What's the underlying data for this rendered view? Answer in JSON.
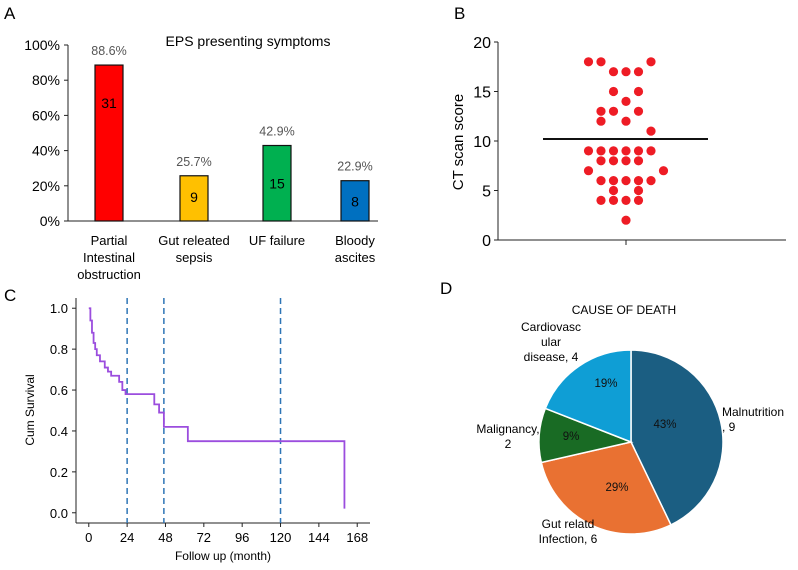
{
  "chart_data": [
    {
      "panel": "A",
      "type": "bar",
      "title": "EPS presenting symptoms",
      "categories": [
        [
          "Partial",
          "Intestinal",
          "obstruction"
        ],
        [
          "Gut releated",
          "sepsis"
        ],
        [
          "UF failure"
        ],
        [
          "Bloody",
          "ascites"
        ]
      ],
      "values": [
        88.6,
        25.7,
        42.9,
        22.9
      ],
      "value_labels": [
        "88.6%",
        "25.7%",
        "42.9%",
        "22.9%"
      ],
      "counts": [
        "31",
        "9",
        "15",
        "8"
      ],
      "colors": [
        "#ff0000",
        "#ffc000",
        "#00b050",
        "#0070c0"
      ],
      "ylim": [
        0,
        100
      ],
      "yticks": [
        "0%",
        "20%",
        "40%",
        "60%",
        "80%",
        "100%"
      ],
      "xlabel": "",
      "ylabel": ""
    },
    {
      "panel": "B",
      "type": "scatter",
      "ylabel": "CT scan score",
      "ylim": [
        0,
        20
      ],
      "yticks": [
        "0",
        "5",
        "10",
        "15",
        "20"
      ],
      "mean": 10.2,
      "color": "#ee1c25",
      "points": [
        [
          -3,
          18
        ],
        [
          -2,
          18
        ],
        [
          2,
          18
        ],
        [
          -1,
          17
        ],
        [
          0,
          17
        ],
        [
          1,
          17
        ],
        [
          -1,
          15
        ],
        [
          1,
          15
        ],
        [
          0,
          14
        ],
        [
          -2,
          13
        ],
        [
          -1,
          13
        ],
        [
          1,
          13
        ],
        [
          -2,
          12
        ],
        [
          0,
          12
        ],
        [
          2,
          11
        ],
        [
          -3,
          9
        ],
        [
          -2,
          9
        ],
        [
          -1,
          9
        ],
        [
          0,
          9
        ],
        [
          1,
          9
        ],
        [
          2,
          9
        ],
        [
          -2,
          8
        ],
        [
          -1,
          8
        ],
        [
          0,
          8
        ],
        [
          1,
          8
        ],
        [
          -3,
          7
        ],
        [
          3,
          7
        ],
        [
          -2,
          6
        ],
        [
          -1,
          6
        ],
        [
          0,
          6
        ],
        [
          1,
          6
        ],
        [
          2,
          6
        ],
        [
          -1,
          5
        ],
        [
          1,
          5
        ],
        [
          -2,
          4
        ],
        [
          -1,
          4
        ],
        [
          0,
          4
        ],
        [
          1,
          4
        ],
        [
          0,
          2
        ]
      ]
    },
    {
      "panel": "C",
      "type": "line",
      "xlabel": "Follow up (month)",
      "ylabel": "Cum Survival",
      "xlim": [
        -8,
        176
      ],
      "ylim": [
        -0.05,
        1.05
      ],
      "xticks": [
        0,
        24,
        48,
        72,
        96,
        120,
        144,
        168
      ],
      "yticks": [
        "0.0",
        "0.2",
        "0.4",
        "0.6",
        "0.8",
        "1.0"
      ],
      "dashed_x": [
        24,
        47,
        120
      ],
      "color": "#9b4dde",
      "dash_color": "#2e75b6",
      "steps": [
        [
          0,
          1.0
        ],
        [
          1,
          0.94
        ],
        [
          2,
          0.88
        ],
        [
          3,
          0.83
        ],
        [
          4,
          0.8
        ],
        [
          5,
          0.77
        ],
        [
          7,
          0.74
        ],
        [
          10,
          0.71
        ],
        [
          12,
          0.69
        ],
        [
          14,
          0.67
        ],
        [
          19,
          0.64
        ],
        [
          21,
          0.6
        ],
        [
          23,
          0.58
        ],
        [
          41,
          0.53
        ],
        [
          44,
          0.49
        ],
        [
          47,
          0.42
        ],
        [
          62,
          0.35
        ],
        [
          160,
          0.35
        ],
        [
          160,
          0.02
        ]
      ]
    },
    {
      "panel": "D",
      "type": "pie",
      "title": "CAUSE OF DEATH",
      "slices": [
        {
          "name": "Malnutrition, 9",
          "label_lines": [
            "Malnutrition",
            ", 9"
          ],
          "value": 9,
          "pct": "43%",
          "color": "#1b5e82"
        },
        {
          "name": "Gut relatd Infection, 6",
          "label_lines": [
            "Gut relatd",
            "Infection, 6"
          ],
          "value": 6,
          "pct": "29%",
          "color": "#e97132"
        },
        {
          "name": "Malignancy, 2",
          "label_lines": [
            "Malignancy,",
            "2"
          ],
          "value": 2,
          "pct": "9%",
          "color": "#196b24"
        },
        {
          "name": "Cardiovascular disease, 4",
          "label_lines": [
            "Cardiovasc",
            "ular",
            "disease, 4"
          ],
          "value": 4,
          "pct": "19%",
          "color": "#0f9ed5"
        }
      ]
    }
  ],
  "panels": {
    "a": "A",
    "b": "B",
    "c": "C",
    "d": "D"
  }
}
